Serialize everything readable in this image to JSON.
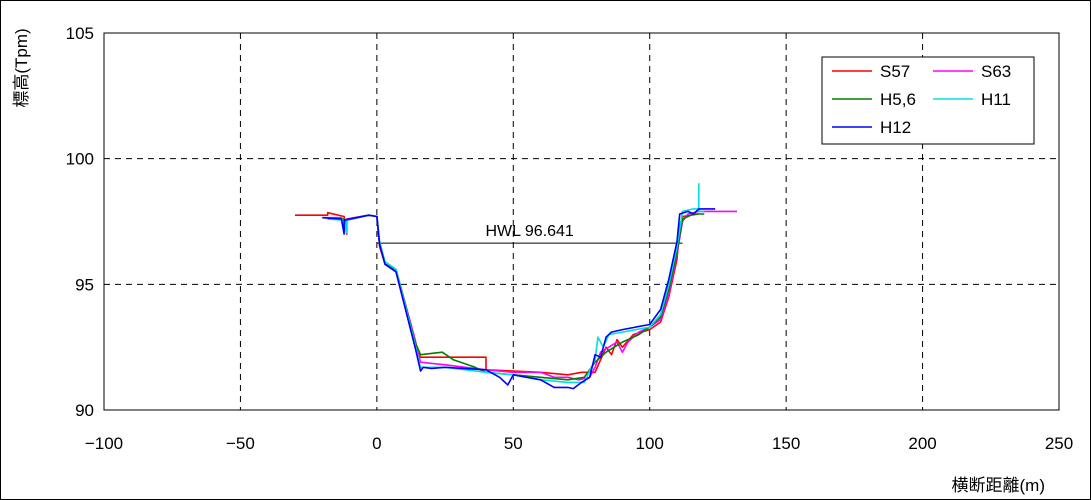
{
  "chart_data": {
    "type": "line",
    "title": "",
    "xlabel": "横断距離(m)",
    "ylabel": "標高(Tpm)",
    "xlim": [
      -100,
      250
    ],
    "ylim": [
      90,
      105
    ],
    "xticks": [
      -100,
      -50,
      0,
      50,
      100,
      150,
      200,
      250
    ],
    "yticks": [
      90,
      95,
      100,
      105
    ],
    "xtick_labels": [
      "−100",
      "−50",
      "0",
      "50",
      "100",
      "150",
      "200",
      "250"
    ],
    "ytick_labels": [
      "90",
      "95",
      "100",
      "105"
    ],
    "grid": true,
    "legend_position": "top-right",
    "annotation": {
      "text": "HWL 96.641",
      "y": 96.641,
      "x_start": 0,
      "x_end": 112
    },
    "series": [
      {
        "name": "S57",
        "color": "#ff0000",
        "points": [
          [
            -30,
            97.75
          ],
          [
            -18,
            97.75
          ],
          [
            -18,
            97.85
          ],
          [
            -12,
            97.7
          ],
          [
            -11,
            97.0
          ],
          [
            -11,
            97.6
          ],
          [
            -3,
            97.75
          ],
          [
            0,
            97.7
          ],
          [
            1,
            96.5
          ],
          [
            3,
            95.8
          ],
          [
            7,
            95.5
          ],
          [
            14,
            92.5
          ],
          [
            16,
            92.1
          ],
          [
            40,
            92.1
          ],
          [
            40,
            91.6
          ],
          [
            60,
            91.5
          ],
          [
            70,
            91.4
          ],
          [
            75,
            91.5
          ],
          [
            80,
            91.5
          ],
          [
            84,
            92.5
          ],
          [
            86,
            92.2
          ],
          [
            88,
            92.8
          ],
          [
            90,
            92.5
          ],
          [
            94,
            93.0
          ],
          [
            100,
            93.2
          ],
          [
            104,
            93.5
          ],
          [
            107,
            94.5
          ],
          [
            110,
            96.0
          ],
          [
            111,
            97.3
          ],
          [
            112,
            97.7
          ],
          [
            118,
            97.8
          ]
        ]
      },
      {
        "name": "S63",
        "color": "#ff00ff",
        "points": [
          [
            -20,
            97.65
          ],
          [
            -13,
            97.65
          ],
          [
            -12,
            97.1
          ],
          [
            -11,
            97.6
          ],
          [
            -3,
            97.75
          ],
          [
            0,
            97.7
          ],
          [
            1,
            96.6
          ],
          [
            3,
            95.8
          ],
          [
            7,
            95.6
          ],
          [
            14,
            92.8
          ],
          [
            16,
            91.9
          ],
          [
            25,
            91.8
          ],
          [
            40,
            91.6
          ],
          [
            50,
            91.5
          ],
          [
            60,
            91.5
          ],
          [
            65,
            91.3
          ],
          [
            70,
            91.3
          ],
          [
            74,
            91.2
          ],
          [
            78,
            91.3
          ],
          [
            80,
            91.7
          ],
          [
            82,
            92.3
          ],
          [
            85,
            92.5
          ],
          [
            88,
            92.7
          ],
          [
            90,
            92.3
          ],
          [
            92,
            92.7
          ],
          [
            96,
            93.1
          ],
          [
            100,
            93.3
          ],
          [
            104,
            93.6
          ],
          [
            107,
            94.6
          ],
          [
            110,
            96.2
          ],
          [
            112,
            97.5
          ],
          [
            114,
            97.8
          ],
          [
            118,
            97.9
          ],
          [
            132,
            97.9
          ]
        ]
      },
      {
        "name": "H5,6",
        "color": "#008000",
        "points": [
          [
            -18,
            97.6
          ],
          [
            -12,
            97.6
          ],
          [
            -11,
            97.1
          ],
          [
            -11,
            97.55
          ],
          [
            -3,
            97.75
          ],
          [
            0,
            97.7
          ],
          [
            1,
            96.6
          ],
          [
            3,
            95.8
          ],
          [
            7,
            95.6
          ],
          [
            14,
            92.7
          ],
          [
            16,
            92.2
          ],
          [
            24,
            92.3
          ],
          [
            28,
            92.0
          ],
          [
            36,
            91.7
          ],
          [
            40,
            91.5
          ],
          [
            50,
            91.4
          ],
          [
            60,
            91.3
          ],
          [
            70,
            91.2
          ],
          [
            76,
            91.3
          ],
          [
            80,
            91.9
          ],
          [
            84,
            92.3
          ],
          [
            90,
            92.7
          ],
          [
            96,
            93.0
          ],
          [
            100,
            93.3
          ],
          [
            104,
            93.7
          ],
          [
            107,
            94.8
          ],
          [
            110,
            96.3
          ],
          [
            112,
            97.6
          ],
          [
            116,
            97.8
          ],
          [
            120,
            97.8
          ]
        ]
      },
      {
        "name": "H11",
        "color": "#00e0e0",
        "points": [
          [
            -18,
            97.6
          ],
          [
            -12,
            97.55
          ],
          [
            -11,
            97.05
          ],
          [
            -11,
            97.55
          ],
          [
            -3,
            97.75
          ],
          [
            0,
            97.7
          ],
          [
            1,
            96.7
          ],
          [
            3,
            95.9
          ],
          [
            7,
            95.6
          ],
          [
            14,
            92.6
          ],
          [
            16,
            91.7
          ],
          [
            25,
            91.7
          ],
          [
            40,
            91.5
          ],
          [
            50,
            91.4
          ],
          [
            60,
            91.2
          ],
          [
            70,
            91.1
          ],
          [
            76,
            91.1
          ],
          [
            80,
            92.0
          ],
          [
            81,
            92.9
          ],
          [
            83,
            92.5
          ],
          [
            85,
            93.0
          ],
          [
            90,
            93.1
          ],
          [
            100,
            93.3
          ],
          [
            104,
            93.8
          ],
          [
            107,
            95.0
          ],
          [
            110,
            96.5
          ],
          [
            112,
            97.9
          ],
          [
            116,
            98.0
          ],
          [
            118,
            98.0
          ],
          [
            118,
            99.0
          ],
          [
            118,
            97.9
          ],
          [
            120,
            97.9
          ]
        ]
      },
      {
        "name": "H12",
        "color": "#0000ff",
        "points": [
          [
            -20,
            97.65
          ],
          [
            -13,
            97.6
          ],
          [
            -12,
            97.0
          ],
          [
            -12,
            97.55
          ],
          [
            -3,
            97.75
          ],
          [
            0,
            97.7
          ],
          [
            1,
            96.6
          ],
          [
            3,
            95.8
          ],
          [
            7,
            95.5
          ],
          [
            14,
            92.5
          ],
          [
            16,
            91.55
          ],
          [
            17,
            91.7
          ],
          [
            20,
            91.65
          ],
          [
            25,
            91.7
          ],
          [
            40,
            91.6
          ],
          [
            45,
            91.3
          ],
          [
            48,
            91.0
          ],
          [
            50,
            91.4
          ],
          [
            55,
            91.3
          ],
          [
            60,
            91.2
          ],
          [
            65,
            90.9
          ],
          [
            70,
            90.9
          ],
          [
            72,
            90.85
          ],
          [
            75,
            91.1
          ],
          [
            78,
            91.3
          ],
          [
            80,
            92.2
          ],
          [
            82,
            92.1
          ],
          [
            84,
            92.9
          ],
          [
            86,
            93.1
          ],
          [
            90,
            93.2
          ],
          [
            100,
            93.4
          ],
          [
            104,
            94.0
          ],
          [
            107,
            95.2
          ],
          [
            110,
            96.7
          ],
          [
            111,
            97.8
          ],
          [
            114,
            97.9
          ],
          [
            116,
            97.8
          ],
          [
            118,
            98.0
          ],
          [
            124,
            98.0
          ]
        ]
      }
    ]
  }
}
